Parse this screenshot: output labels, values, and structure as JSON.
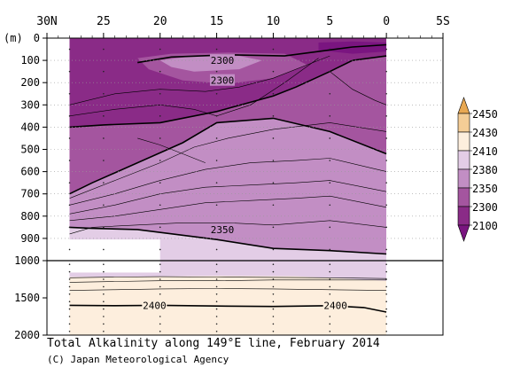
{
  "chart_data": {
    "type": "heatmap",
    "title": "Total Alkalinity along 149°E line, February 2014",
    "credit": "(C) Japan Meteorological Agency",
    "x_axis": {
      "ticks": [
        {
          "lat": 30,
          "label": "30N"
        },
        {
          "lat": 25,
          "label": "25"
        },
        {
          "lat": 20,
          "label": "20"
        },
        {
          "lat": 15,
          "label": "15"
        },
        {
          "lat": 10,
          "label": "10"
        },
        {
          "lat": 5,
          "label": "5"
        },
        {
          "lat": 0,
          "label": "0"
        },
        {
          "lat": -5,
          "label": "5S"
        }
      ],
      "range": [
        30,
        -5
      ]
    },
    "y_axis": {
      "unit_label": "(m)",
      "upper_ticks": [
        "0",
        "100",
        "200",
        "300",
        "400",
        "500",
        "600",
        "700",
        "800",
        "900",
        "1000"
      ],
      "lower_ticks": [
        "1500",
        "2000"
      ],
      "upper_range": [
        0,
        1000
      ],
      "lower_range": [
        1000,
        2000
      ]
    },
    "legend": {
      "levels": [
        "2450",
        "2430",
        "2410",
        "2380",
        "2350",
        "2300",
        "2100"
      ],
      "colors": [
        "#e8a852",
        "#f4cd96",
        "#fdeedd",
        "#e3cde6",
        "#c28ec4",
        "#a4559f",
        "#8a2b87",
        "#7a1580"
      ]
    },
    "contour_labels": [
      {
        "text": "2300",
        "lat": 14.5,
        "depth": 100
      },
      {
        "text": "2300",
        "lat": 14.5,
        "depth": 190
      },
      {
        "text": "2350",
        "lat": 14.5,
        "depth": 860
      },
      {
        "text": "2400",
        "lat": 20.5,
        "depth": 1600
      },
      {
        "text": "2400",
        "lat": 4.5,
        "depth": 1600
      }
    ],
    "stations_lat": [
      28,
      25,
      20,
      15,
      10,
      5,
      0
    ]
  }
}
